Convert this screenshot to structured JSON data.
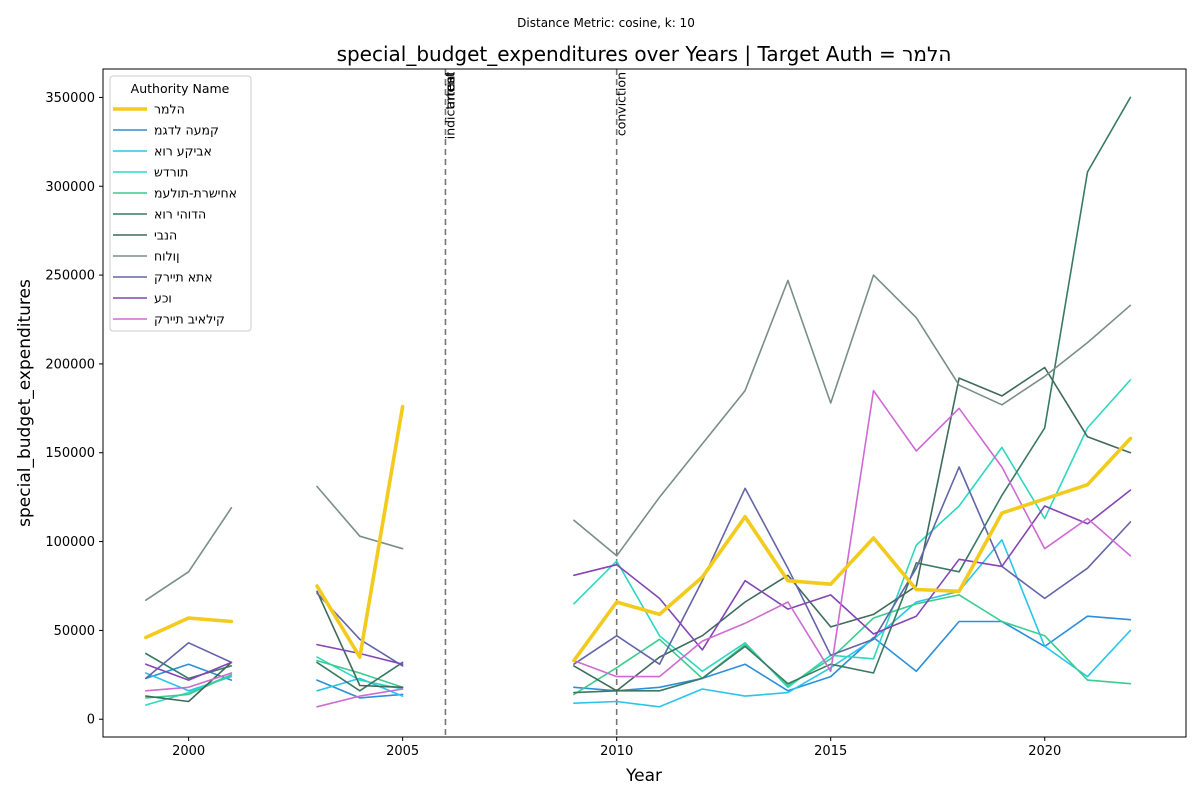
{
  "chart_data": {
    "type": "line",
    "suptitle": "Distance Metric: cosine, k: 10",
    "title": "special_budget_expenditures over Years | Target Auth = הלמר",
    "xlabel": "Year",
    "ylabel": "special_budget_expenditures",
    "xlim": [
      1998,
      2023.3
    ],
    "ylim": [
      -10000,
      366000
    ],
    "xticks": [
      2000,
      2005,
      2010,
      2015,
      2020
    ],
    "yticks": [
      0,
      50000,
      100000,
      150000,
      200000,
      250000,
      300000,
      350000
    ],
    "grid": false,
    "legend": {
      "title": "Authority Name",
      "placement": "top-left"
    },
    "vlines": [
      {
        "x": 2006,
        "labels": [
          "indictment",
          "arrest",
          "trial"
        ]
      },
      {
        "x": 2010,
        "labels": [
          "conviction"
        ]
      }
    ],
    "series": [
      {
        "name": "הלמר",
        "color": "#f2cb1d",
        "target": true,
        "segments": [
          [
            [
              1999,
              46000
            ],
            [
              2000,
              57000
            ],
            [
              2001,
              55000
            ]
          ],
          [
            [
              2003,
              75000
            ],
            [
              2004,
              35000
            ],
            [
              2005,
              176000
            ]
          ],
          [
            [
              2009,
              33000
            ],
            [
              2010,
              66000
            ],
            [
              2011,
              59000
            ],
            [
              2012,
              80000
            ],
            [
              2013,
              114000
            ],
            [
              2014,
              78000
            ],
            [
              2015,
              76000
            ],
            [
              2016,
              102000
            ],
            [
              2017,
              73000
            ],
            [
              2018,
              72000
            ],
            [
              2019,
              116000
            ],
            [
              2020,
              124000
            ],
            [
              2021,
              132000
            ],
            [
              2022,
              158000
            ]
          ]
        ]
      },
      {
        "name": "קמעה לדגמ",
        "color": "#2b8fdb",
        "segments": [
          [
            [
              1999,
              23000
            ],
            [
              2000,
              31000
            ],
            [
              2001,
              22000
            ]
          ],
          [
            [
              2003,
              22000
            ],
            [
              2004,
              12000
            ],
            [
              2005,
              14000
            ]
          ],
          [
            [
              2009,
              18000
            ],
            [
              2010,
              16000
            ],
            [
              2011,
              18000
            ],
            [
              2012,
              23000
            ],
            [
              2013,
              31000
            ],
            [
              2014,
              16000
            ],
            [
              2015,
              24000
            ],
            [
              2016,
              46000
            ],
            [
              2017,
              27000
            ],
            [
              2018,
              55000
            ],
            [
              2019,
              55000
            ],
            [
              2020,
              41000
            ],
            [
              2021,
              58000
            ],
            [
              2022,
              56000
            ]
          ]
        ]
      },
      {
        "name": "אביקע רוא",
        "color": "#2ac5ea",
        "segments": [
          [
            [
              1999,
              26000
            ],
            [
              2000,
              16000
            ],
            [
              2001,
              24000
            ]
          ],
          [
            [
              2003,
              16000
            ],
            [
              2004,
              23000
            ],
            [
              2005,
              13000
            ]
          ],
          [
            [
              2009,
              9000
            ],
            [
              2010,
              10000
            ],
            [
              2011,
              7000
            ],
            [
              2012,
              17000
            ],
            [
              2013,
              13000
            ],
            [
              2014,
              15000
            ],
            [
              2015,
              29000
            ],
            [
              2016,
              45000
            ],
            [
              2017,
              66000
            ],
            [
              2018,
              72000
            ],
            [
              2019,
              101000
            ],
            [
              2020,
              41000
            ],
            [
              2021,
              24000
            ],
            [
              2022,
              50000
            ]
          ]
        ]
      },
      {
        "name": "תורדש",
        "color": "#2ed8c0",
        "segments": [
          [
            [
              1999,
              8000
            ],
            [
              2000,
              15000
            ],
            [
              2001,
              25000
            ]
          ],
          [
            [
              2003,
              35000
            ],
            [
              2004,
              22000
            ],
            [
              2005,
              17000
            ]
          ],
          [
            [
              2009,
              65000
            ],
            [
              2010,
              89000
            ],
            [
              2011,
              47000
            ],
            [
              2012,
              27000
            ],
            [
              2013,
              43000
            ],
            [
              2014,
              18000
            ],
            [
              2015,
              36000
            ],
            [
              2016,
              34000
            ],
            [
              2017,
              98000
            ],
            [
              2018,
              120000
            ],
            [
              2019,
              153000
            ],
            [
              2020,
              113000
            ],
            [
              2021,
              164000
            ],
            [
              2022,
              191000
            ]
          ]
        ]
      },
      {
        "name": "אחישרת-תולעמ",
        "color": "#3ccc8e",
        "segments": [
          [
            [
              1999,
              12000
            ],
            [
              2000,
              14000
            ],
            [
              2001,
              25000
            ]
          ],
          [
            [
              2003,
              33000
            ],
            [
              2004,
              26000
            ],
            [
              2005,
              18000
            ]
          ],
          [
            [
              2009,
              14000
            ],
            [
              2010,
              29000
            ],
            [
              2011,
              45000
            ],
            [
              2012,
              23000
            ],
            [
              2013,
              42000
            ],
            [
              2014,
              19000
            ],
            [
              2015,
              34000
            ],
            [
              2016,
              57000
            ],
            [
              2017,
              65000
            ],
            [
              2018,
              70000
            ],
            [
              2019,
              55000
            ],
            [
              2020,
              47000
            ],
            [
              2021,
              22000
            ],
            [
              2022,
              20000
            ]
          ]
        ]
      },
      {
        "name": "הדוהי רוא",
        "color": "#3a7a63",
        "segments": [
          [
            [
              1999,
              37000
            ],
            [
              2000,
              23000
            ],
            [
              2001,
              30000
            ]
          ],
          [
            [
              2003,
              32000
            ],
            [
              2004,
              16000
            ],
            [
              2005,
              32000
            ]
          ],
          [
            [
              2009,
              15000
            ],
            [
              2010,
              16000
            ],
            [
              2011,
              16000
            ],
            [
              2012,
              23000
            ],
            [
              2013,
              41000
            ],
            [
              2014,
              20000
            ],
            [
              2015,
              31000
            ],
            [
              2016,
              26000
            ],
            [
              2017,
              88000
            ],
            [
              2018,
              83000
            ],
            [
              2019,
              126000
            ],
            [
              2020,
              164000
            ],
            [
              2021,
              308000
            ],
            [
              2022,
              350000
            ]
          ]
        ]
      },
      {
        "name": "הנבי",
        "color": "#3f6b5a",
        "segments": [
          [
            [
              1999,
              13000
            ],
            [
              2000,
              10000
            ],
            [
              2001,
              32000
            ]
          ],
          [
            [
              2003,
              72000
            ],
            [
              2004,
              19000
            ],
            [
              2005,
              18000
            ]
          ],
          [
            [
              2009,
              30000
            ],
            [
              2010,
              16000
            ],
            [
              2011,
              35000
            ],
            [
              2012,
              47000
            ],
            [
              2013,
              66000
            ],
            [
              2014,
              81000
            ],
            [
              2015,
              52000
            ],
            [
              2016,
              59000
            ],
            [
              2017,
              75000
            ],
            [
              2018,
              192000
            ],
            [
              2019,
              182000
            ],
            [
              2020,
              198000
            ],
            [
              2021,
              159000
            ],
            [
              2022,
              150000
            ]
          ]
        ]
      },
      {
        "name": "ןולוח",
        "color": "#7a8f86",
        "segments": [
          [
            [
              1999,
              67000
            ],
            [
              2000,
              83000
            ],
            [
              2001,
              119000
            ]
          ],
          [
            [
              2003,
              131000
            ],
            [
              2004,
              103000
            ],
            [
              2005,
              96000
            ]
          ],
          [
            [
              2009,
              112000
            ],
            [
              2010,
              92000
            ],
            [
              2011,
              125000
            ],
            [
              2012,
              155000
            ],
            [
              2013,
              185000
            ],
            [
              2014,
              247000
            ],
            [
              2015,
              178000
            ],
            [
              2016,
              250000
            ],
            [
              2017,
              226000
            ],
            [
              2018,
              188000
            ],
            [
              2019,
              177000
            ],
            [
              2020,
              193000
            ],
            [
              2021,
              212000
            ],
            [
              2022,
              233000
            ]
          ]
        ]
      },
      {
        "name": "אתא תיירק",
        "color": "#6464a8",
        "segments": [
          [
            [
              1999,
              23000
            ],
            [
              2000,
              43000
            ],
            [
              2001,
              32000
            ]
          ],
          [
            [
              2003,
              71000
            ],
            [
              2004,
              45000
            ],
            [
              2005,
              30000
            ]
          ],
          [
            [
              2009,
              31000
            ],
            [
              2010,
              47000
            ],
            [
              2011,
              31000
            ],
            [
              2012,
              78000
            ],
            [
              2013,
              130000
            ],
            [
              2014,
              85000
            ],
            [
              2015,
              36000
            ],
            [
              2016,
              45000
            ],
            [
              2017,
              85000
            ],
            [
              2018,
              142000
            ],
            [
              2019,
              86000
            ],
            [
              2020,
              68000
            ],
            [
              2021,
              85000
            ],
            [
              2022,
              111000
            ]
          ]
        ]
      },
      {
        "name": "וכע",
        "color": "#8445b5",
        "segments": [
          [
            [
              1999,
              31000
            ],
            [
              2000,
              22000
            ],
            [
              2001,
              32000
            ]
          ],
          [
            [
              2003,
              42000
            ],
            [
              2004,
              37000
            ],
            [
              2005,
              31000
            ]
          ],
          [
            [
              2009,
              81000
            ],
            [
              2010,
              87000
            ],
            [
              2011,
              68000
            ],
            [
              2012,
              39000
            ],
            [
              2013,
              78000
            ],
            [
              2014,
              62000
            ],
            [
              2015,
              70000
            ],
            [
              2016,
              48000
            ],
            [
              2017,
              58000
            ],
            [
              2018,
              90000
            ],
            [
              2019,
              86000
            ],
            [
              2020,
              120000
            ],
            [
              2021,
              110000
            ],
            [
              2022,
              129000
            ]
          ]
        ]
      },
      {
        "name": "קילאיב תיירק",
        "color": "#cf6ad4",
        "segments": [
          [
            [
              1999,
              16000
            ],
            [
              2000,
              18000
            ],
            [
              2001,
              26000
            ]
          ],
          [
            [
              2003,
              7000
            ],
            [
              2004,
              13000
            ],
            [
              2005,
              17000
            ]
          ],
          [
            [
              2009,
              33000
            ],
            [
              2010,
              24000
            ],
            [
              2011,
              24000
            ],
            [
              2012,
              44000
            ],
            [
              2013,
              54000
            ],
            [
              2014,
              66000
            ],
            [
              2015,
              27000
            ],
            [
              2016,
              185000
            ],
            [
              2017,
              151000
            ],
            [
              2018,
              175000
            ],
            [
              2019,
              142000
            ],
            [
              2020,
              96000
            ],
            [
              2021,
              113000
            ],
            [
              2022,
              92000
            ]
          ]
        ]
      }
    ]
  }
}
